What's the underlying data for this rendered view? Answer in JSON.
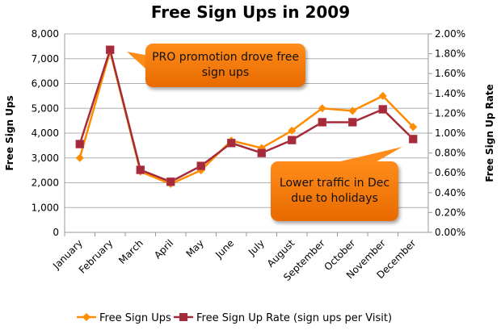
{
  "chart_data": {
    "type": "line",
    "title": "Free Sign Ups in 2009",
    "categories": [
      "January",
      "February",
      "March",
      "April",
      "May",
      "June",
      "July",
      "August",
      "September",
      "October",
      "November",
      "December"
    ],
    "y_left": {
      "label": "Free Sign Ups",
      "range": [
        0,
        8000
      ],
      "ticks": [
        "0",
        "1,000",
        "2,000",
        "3,000",
        "4,000",
        "5,000",
        "6,000",
        "7,000",
        "8,000"
      ]
    },
    "y_right": {
      "label": "Free Sign Up Rate",
      "range": [
        0,
        2.0
      ],
      "ticks": [
        "0.00%",
        "0.20%",
        "0.40%",
        "0.60%",
        "0.80%",
        "1.00%",
        "1.20%",
        "1.40%",
        "1.60%",
        "1.80%",
        "2.00%"
      ]
    },
    "grid": true,
    "legend_position": "bottom",
    "series": [
      {
        "name": "Free Sign Ups",
        "axis": "left",
        "color": "#ff8c00",
        "marker": "diamond",
        "values": [
          3000,
          7300,
          2450,
          1950,
          2500,
          3700,
          3400,
          4100,
          5000,
          4900,
          5500,
          4250
        ]
      },
      {
        "name": "Free Sign Up Rate (sign ups per Visit)",
        "axis": "right",
        "color": "#a52a3a",
        "marker": "square",
        "values": [
          0.89,
          1.84,
          0.63,
          0.51,
          0.67,
          0.9,
          0.8,
          0.93,
          1.11,
          1.11,
          1.24,
          0.94
        ]
      }
    ],
    "annotations": [
      "PRO promotion drove free sign ups",
      "Lower traffic in Dec due to holidays"
    ]
  }
}
